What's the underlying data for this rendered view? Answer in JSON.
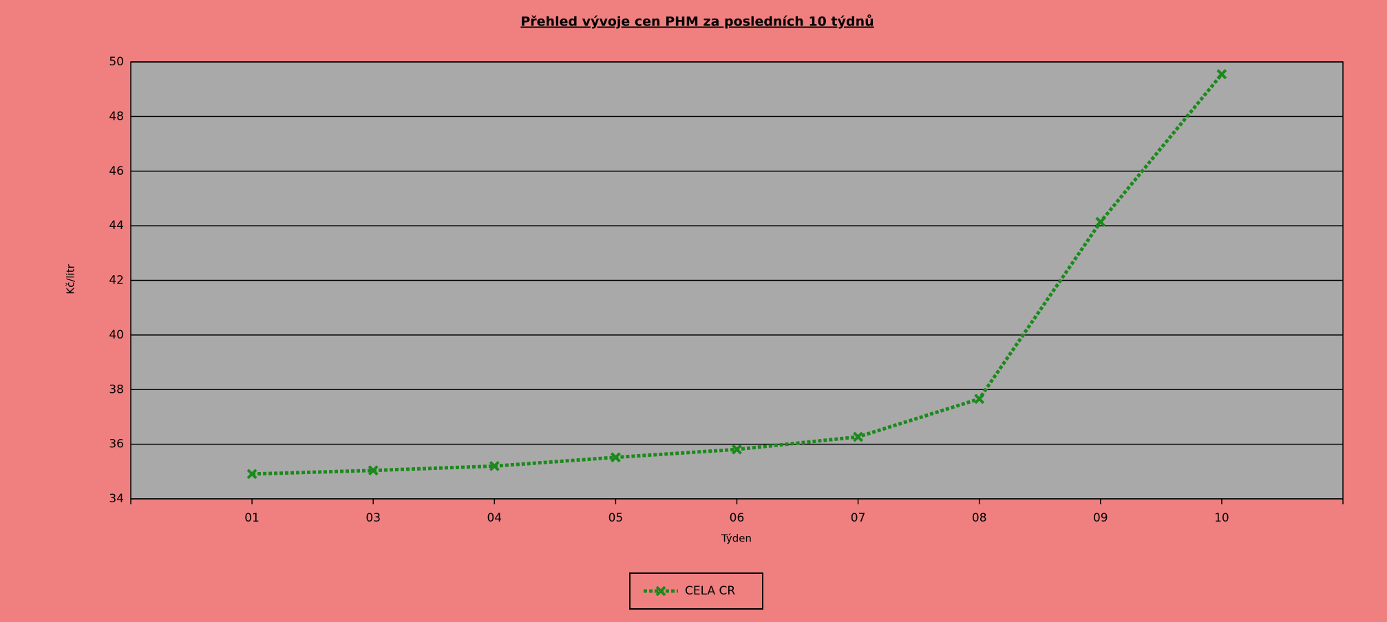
{
  "chart_data": {
    "type": "line",
    "title": "Přehled vývoje cen PHM za posledních 10 týdnů",
    "x_label": "Týden",
    "y_label": "Kč/litr",
    "categories": [
      "01",
      "03",
      "04",
      "05",
      "06",
      "07",
      "08",
      "09",
      "10"
    ],
    "series": [
      {
        "name": "CELA CR",
        "color": "#1a8a1a",
        "values": [
          34.91,
          35.04,
          35.2,
          35.52,
          35.81,
          36.27,
          37.66,
          44.14,
          49.55
        ]
      }
    ],
    "ylim": [
      34,
      50
    ],
    "yticks": [
      34,
      36,
      38,
      40,
      42,
      44,
      46,
      48,
      50
    ],
    "grid": true,
    "legend": "bottom"
  }
}
